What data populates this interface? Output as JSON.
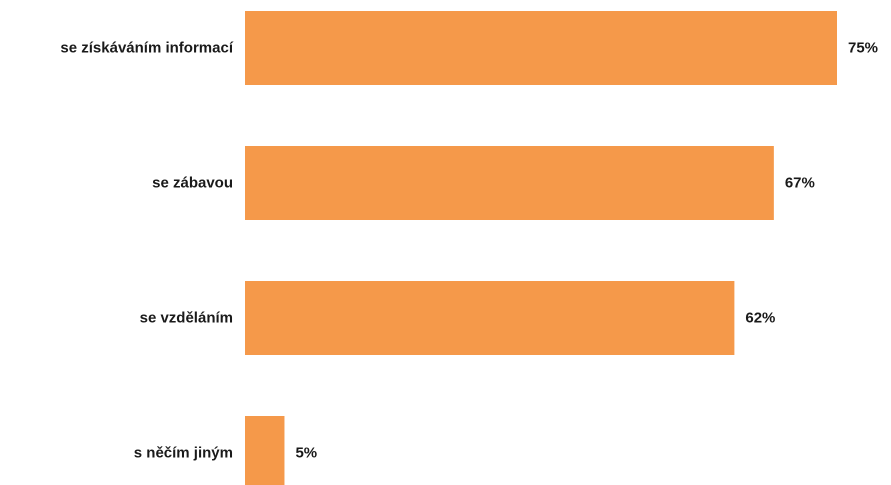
{
  "chart_data": {
    "type": "bar",
    "orientation": "horizontal",
    "categories": [
      "se získáváním informací",
      "se zábavou",
      "se vzděláním",
      "s něčím jiným"
    ],
    "values": [
      75,
      67,
      62,
      5
    ],
    "value_labels": [
      "75%",
      "67%",
      "62%",
      "5%"
    ],
    "unit": "%",
    "xlim": [
      0,
      100
    ],
    "bar_color": "#f5994a",
    "grid": false,
    "legend": "none"
  }
}
